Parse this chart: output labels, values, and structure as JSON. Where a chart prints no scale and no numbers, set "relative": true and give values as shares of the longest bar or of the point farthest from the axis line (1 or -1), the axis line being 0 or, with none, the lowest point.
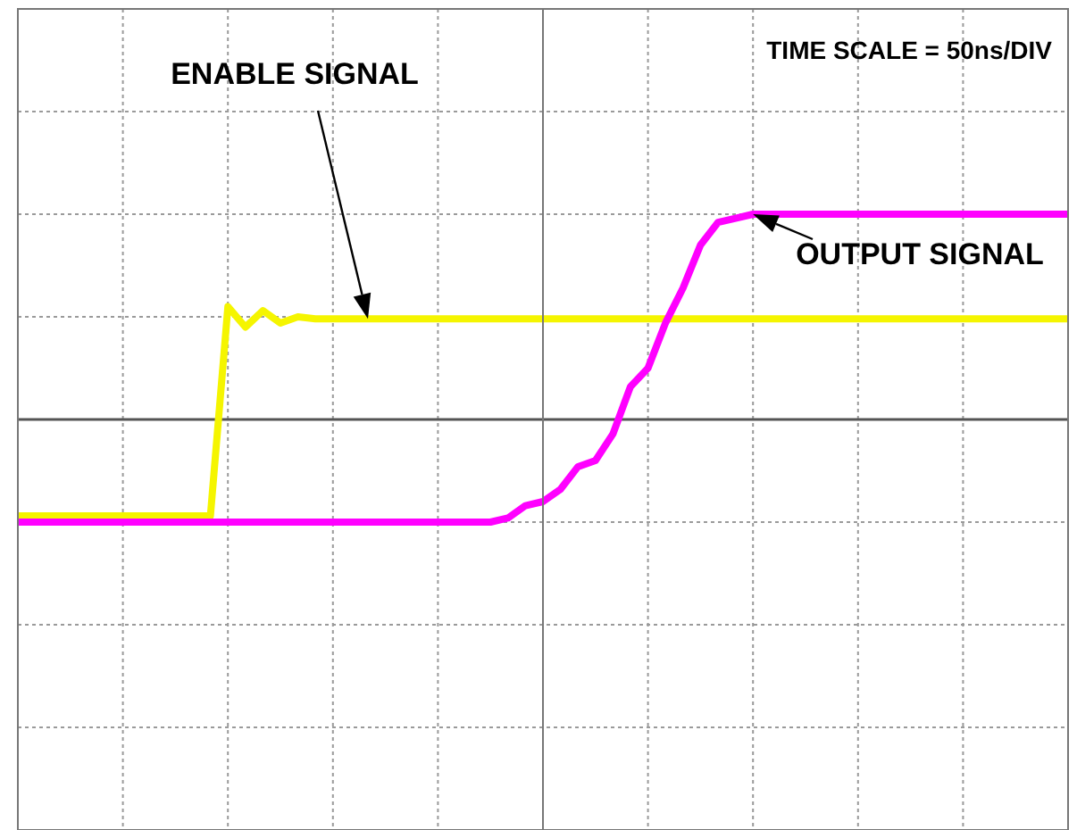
{
  "chart_data": {
    "type": "line",
    "relative": true,
    "grid": true,
    "tick_labels": false,
    "marker": "none",
    "line_style": "solid",
    "categories": [
      null,
      null,
      null,
      null,
      null,
      null,
      null,
      null,
      null,
      null,
      null,
      null,
      null,
      null,
      null,
      null,
      null,
      null,
      null,
      null,
      null,
      null,
      null,
      null,
      null,
      null,
      null,
      null,
      null,
      null,
      null,
      null,
      null,
      null,
      null,
      null,
      null,
      null,
      null,
      null,
      null,
      null,
      null,
      null,
      null,
      null,
      null,
      null,
      null,
      null,
      null,
      null,
      null,
      null,
      null,
      null,
      null,
      null,
      null,
      null,
      null
    ],
    "annotations": [
      "TIME SCALE = 50ns/DIV"
    ],
    "series": [
      {
        "name": "ENABLE SIGNAL",
        "color": "#f5f500",
        "values": [
          -0.47,
          -0.47,
          -0.47,
          -0.47,
          -0.47,
          -0.47,
          -0.47,
          -0.47,
          -0.47,
          -0.47,
          -0.47,
          -0.47,
          0.55,
          0.45,
          0.53,
          0.47,
          0.5,
          0.49,
          0.49,
          0.49,
          0.49,
          0.49,
          0.49,
          0.49,
          0.49,
          0.49,
          0.49,
          0.49,
          0.49,
          0.49,
          0.49,
          0.49,
          0.49,
          0.49,
          0.49,
          0.49,
          0.49,
          0.49,
          0.49,
          0.49,
          0.49,
          0.49,
          0.49,
          0.49,
          0.49,
          0.49,
          0.49,
          0.49,
          0.49,
          0.49,
          0.49,
          0.49,
          0.49,
          0.49,
          0.49,
          0.49,
          0.49,
          0.49,
          0.49,
          0.49,
          0.49
        ]
      },
      {
        "name": "OUTPUT SIGNAL",
        "color": "#ff00ff",
        "values": [
          -0.5,
          -0.5,
          -0.5,
          -0.5,
          -0.5,
          -0.5,
          -0.5,
          -0.5,
          -0.5,
          -0.5,
          -0.5,
          -0.5,
          -0.5,
          -0.5,
          -0.5,
          -0.5,
          -0.5,
          -0.5,
          -0.5,
          -0.5,
          -0.5,
          -0.5,
          -0.5,
          -0.5,
          -0.5,
          -0.5,
          -0.5,
          -0.5,
          -0.48,
          -0.42,
          -0.4,
          -0.34,
          -0.23,
          -0.2,
          -0.07,
          0.16,
          0.25,
          0.47,
          0.64,
          0.85,
          0.96,
          0.98,
          1,
          1,
          1,
          1,
          1,
          1,
          1,
          1,
          1,
          1,
          1,
          1,
          1,
          1,
          1,
          1,
          1,
          1,
          1
        ]
      }
    ]
  }
}
